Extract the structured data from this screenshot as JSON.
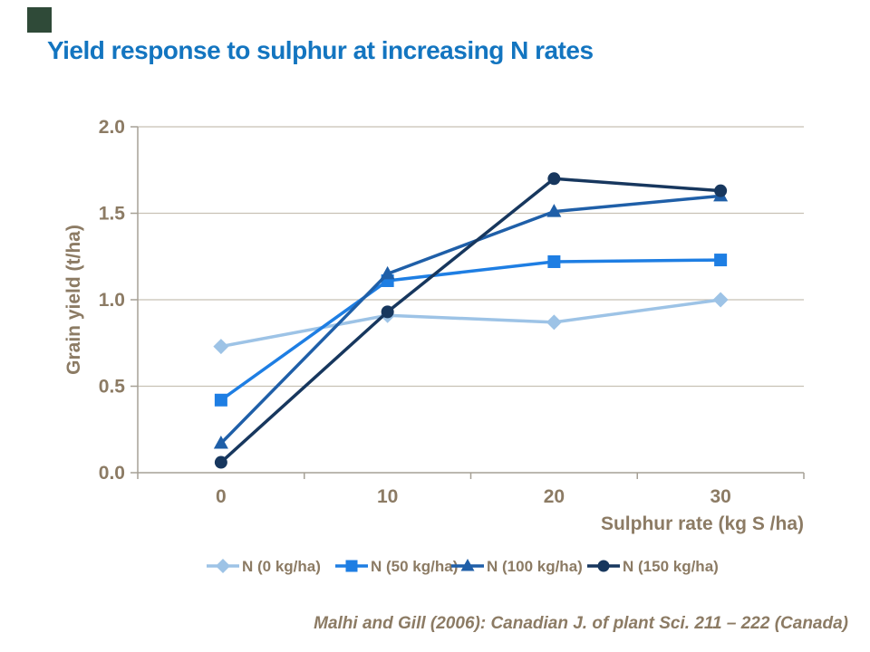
{
  "slide": {
    "title": "Yield response to sulphur at increasing N rates",
    "title_color": "#1375C0",
    "accent_square_color": "#2F4A38",
    "citation": "Malhi and  Gill (2006): Canadian J. of plant Sci. 211 – 222 (Canada)",
    "text_color": "#8C7B64"
  },
  "chart_data": {
    "type": "line",
    "title": "",
    "xlabel": "Sulphur rate (kg S /ha)",
    "ylabel": "Grain yield (t/ha)",
    "categories": [
      "0",
      "10",
      "20",
      "30"
    ],
    "x_values": [
      0,
      10,
      20,
      30
    ],
    "ylim": [
      0.0,
      2.0
    ],
    "ytick_labels": [
      "0.0",
      "0.5",
      "1.0",
      "1.5",
      "2.0"
    ],
    "grid": "horizontal",
    "legend_position": "bottom",
    "series": [
      {
        "name": "N (0 kg/ha)",
        "marker": "diamond",
        "color": "#9DC3E6",
        "values": [
          0.73,
          0.91,
          0.87,
          1.0
        ]
      },
      {
        "name": "N (50 kg/ha)",
        "marker": "square",
        "color": "#1E7EE3",
        "values": [
          0.42,
          1.11,
          1.22,
          1.23
        ]
      },
      {
        "name": "N (100 kg/ha)",
        "marker": "triangle",
        "color": "#1F5FA8",
        "values": [
          0.17,
          1.15,
          1.51,
          1.6
        ]
      },
      {
        "name": "N (150 kg/ha)",
        "marker": "circle",
        "color": "#17375E",
        "values": [
          0.06,
          0.93,
          1.7,
          1.63
        ]
      }
    ],
    "axis_colors": {
      "axis_line": "#A6A095",
      "gridline": "#C8C1B5",
      "tick_text": "#8C7B64"
    }
  }
}
